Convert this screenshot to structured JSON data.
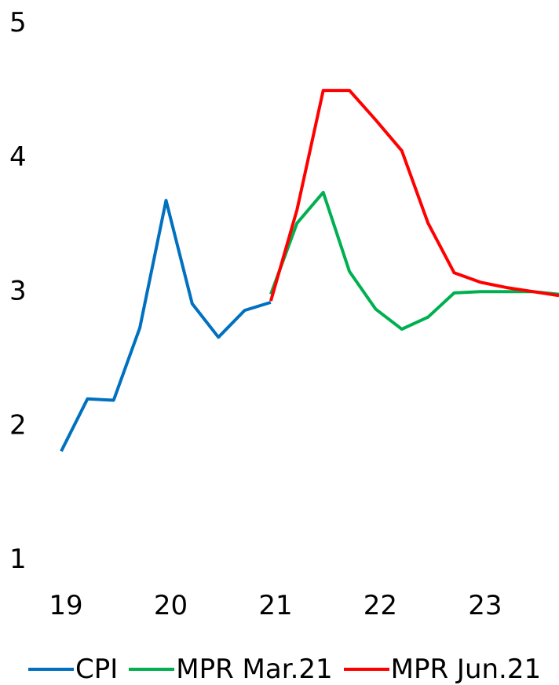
{
  "chart_data": {
    "type": "line",
    "title": "",
    "xlabel": "",
    "ylabel": "",
    "ylim": [
      1,
      5
    ],
    "xlim": [
      2019,
      2023.75
    ],
    "y_ticks": [
      "1",
      "2",
      "3",
      "4",
      "5"
    ],
    "x_ticks": [
      "19",
      "20",
      "21",
      "22",
      "23"
    ],
    "grid": false,
    "legend_position": "bottom",
    "series": [
      {
        "name": "CPI",
        "color": "#0070C0",
        "x": [
          2019.0,
          2019.25,
          2019.5,
          2019.75,
          2020.0,
          2020.25,
          2020.5,
          2020.75,
          2021.0
        ],
        "y": [
          1.8,
          2.19,
          2.18,
          2.72,
          3.67,
          2.9,
          2.65,
          2.85,
          2.91
        ]
      },
      {
        "name": "MPR Mar.21",
        "color": "#00B050",
        "x": [
          2021.0,
          2021.25,
          2021.5,
          2021.75,
          2022.0,
          2022.25,
          2022.5,
          2022.75,
          2023.0,
          2023.25,
          2023.5,
          2023.75
        ],
        "y": [
          2.97,
          3.5,
          3.73,
          3.14,
          2.86,
          2.71,
          2.8,
          2.98,
          2.99,
          2.99,
          2.99,
          2.97
        ]
      },
      {
        "name": "MPR Jun.21",
        "color": "#FF0000",
        "x": [
          2021.0,
          2021.25,
          2021.5,
          2021.75,
          2022.0,
          2022.25,
          2022.5,
          2022.75,
          2023.0,
          2023.25,
          2023.5,
          2023.75
        ],
        "y": [
          2.92,
          3.6,
          4.49,
          4.49,
          4.27,
          4.04,
          3.5,
          3.13,
          3.06,
          3.02,
          2.99,
          2.96
        ]
      }
    ]
  }
}
